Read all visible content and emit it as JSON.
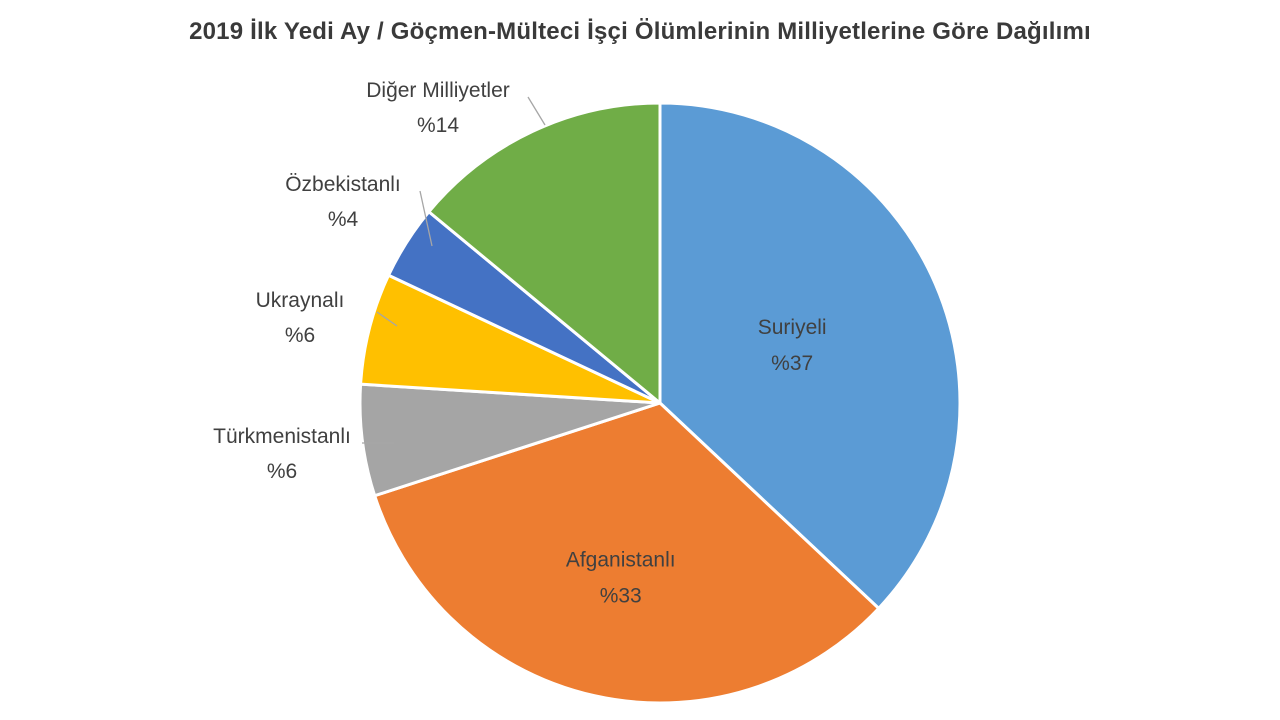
{
  "chart_data": {
    "type": "pie",
    "title": "2019 İlk Yedi Ay / Göçmen-Mülteci İşçi Ölümlerinin Milliyetlerine Göre Dağılımı",
    "slices": [
      {
        "name": "Suriyeli",
        "value": 37,
        "label": "%37",
        "color": "#5b9bd5"
      },
      {
        "name": "Afganistanlı",
        "value": 33,
        "label": "%33",
        "color": "#ed7d31"
      },
      {
        "name": "Türkmenistanlı",
        "value": 6,
        "label": "%6",
        "color": "#a5a5a5"
      },
      {
        "name": "Ukraynalı",
        "value": 6,
        "label": "%6",
        "color": "#ffc000"
      },
      {
        "name": "Özbekistanlı",
        "value": 4,
        "label": "%4",
        "color": "#4472c4"
      },
      {
        "name": "Diğer Milliyetler",
        "value": 14,
        "label": "%14",
        "color": "#70ad47"
      }
    ],
    "start_angle": "12 o'clock",
    "direction": "clockwise",
    "legend": "none"
  }
}
